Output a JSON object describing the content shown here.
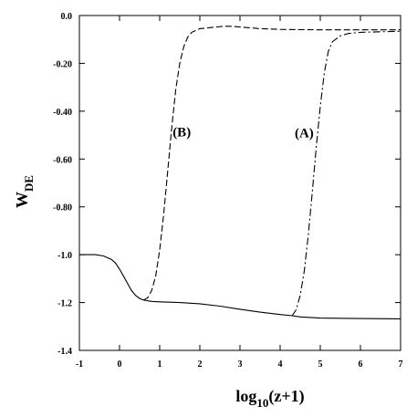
{
  "chart_data": {
    "type": "line",
    "title": "",
    "xlabel": "log10(z+1)",
    "xlabel_parts": {
      "base": "log",
      "sub": "10",
      "rest": "(z+1)"
    },
    "ylabel": "WDE",
    "ylabel_parts": {
      "base": "W",
      "sub": "DE"
    },
    "xlim": [
      -1,
      7
    ],
    "ylim": [
      -1.4,
      0.0
    ],
    "xticks": [
      -1,
      0,
      1,
      2,
      3,
      4,
      5,
      6,
      7
    ],
    "xtick_labels": [
      "-1",
      "0",
      "1",
      "2",
      "3",
      "4",
      "5",
      "6",
      "7"
    ],
    "yticks": [
      0.0,
      -0.2,
      -0.4,
      -0.6,
      -0.8,
      -1.0,
      -1.2,
      -1.4
    ],
    "ytick_labels": [
      "0.0",
      "-0.20",
      "-0.40",
      "-0.60",
      "-0.80",
      "-1.0",
      "-1.2",
      "-1.4"
    ],
    "grid": false,
    "legend": "none",
    "annotations": [
      {
        "text": "(A)",
        "x": 4.6,
        "y": -0.51
      },
      {
        "text": "(B)",
        "x": 1.55,
        "y": -0.505
      }
    ],
    "series": [
      {
        "style": "solid",
        "x": [
          -1.0,
          -0.6,
          -0.4,
          -0.2,
          -0.1,
          0.0,
          0.1,
          0.2,
          0.3,
          0.4,
          0.5,
          0.6,
          0.8,
          1.0,
          1.5,
          2.0,
          2.5,
          3.0,
          3.5,
          4.0,
          4.3,
          4.5,
          5.0,
          6.0,
          7.0
        ],
        "y": [
          -1.0,
          -1.0,
          -1.005,
          -1.02,
          -1.035,
          -1.06,
          -1.09,
          -1.12,
          -1.15,
          -1.17,
          -1.183,
          -1.19,
          -1.195,
          -1.197,
          -1.2,
          -1.205,
          -1.215,
          -1.228,
          -1.24,
          -1.25,
          -1.255,
          -1.26,
          -1.265,
          -1.267,
          -1.268
        ]
      },
      {
        "name": "(A)",
        "style": "dash-dot",
        "x": [
          4.3,
          4.4,
          4.5,
          4.6,
          4.7,
          4.8,
          4.9,
          5.0,
          5.1,
          5.2,
          5.3,
          5.5,
          5.7,
          6.0,
          6.5,
          7.0
        ],
        "y": [
          -1.255,
          -1.23,
          -1.17,
          -1.07,
          -0.92,
          -0.74,
          -0.55,
          -0.38,
          -0.24,
          -0.15,
          -0.11,
          -0.085,
          -0.075,
          -0.07,
          -0.068,
          -0.066
        ]
      },
      {
        "name": "(B)",
        "style": "dashed",
        "x": [
          0.6,
          0.7,
          0.8,
          0.9,
          1.0,
          1.1,
          1.2,
          1.3,
          1.4,
          1.5,
          1.6,
          1.7,
          1.8,
          2.0,
          2.3,
          2.6,
          2.8,
          3.0,
          3.5,
          4.0,
          5.0,
          6.0,
          7.0
        ],
        "y": [
          -1.19,
          -1.18,
          -1.15,
          -1.09,
          -0.98,
          -0.83,
          -0.65,
          -0.47,
          -0.31,
          -0.2,
          -0.13,
          -0.09,
          -0.07,
          -0.055,
          -0.05,
          -0.045,
          -0.045,
          -0.048,
          -0.055,
          -0.058,
          -0.06,
          -0.06,
          -0.06
        ]
      }
    ]
  }
}
